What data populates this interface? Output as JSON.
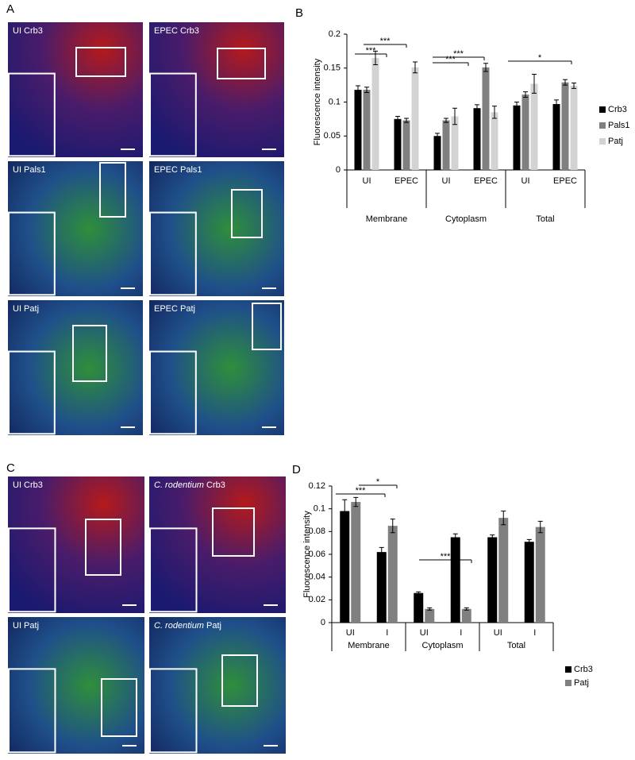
{
  "figure_a": {
    "label": "A",
    "images": [
      "UI Crb3",
      "EPEC Crb3",
      "UI Pals1",
      "EPEC Pals1",
      "UI Patj",
      "EPEC Patj"
    ]
  },
  "figure_c": {
    "label": "C",
    "images": [
      {
        "label": "UI Crb3"
      },
      {
        "species": "C. rodentium",
        "label": "Crb3"
      },
      {
        "label": "UI Patj"
      },
      {
        "species": "C. rodentium",
        "label": "Patj"
      }
    ]
  },
  "chart_data": [
    {
      "type": "bar",
      "panel": "B",
      "y_label": "Fluorescence intensity",
      "categories": [
        "UI",
        "EPEC",
        "UI",
        "EPEC",
        "UI",
        "EPEC"
      ],
      "groups": [
        "Membrane",
        "Cytoplasm",
        "Total"
      ],
      "series": [
        {
          "name": "Crb3",
          "color": "#000000",
          "values": [
            0.118,
            0.075,
            0.05,
            0.091,
            0.095,
            0.097
          ],
          "errors": [
            0.006,
            0.004,
            0.004,
            0.005,
            0.005,
            0.006
          ]
        },
        {
          "name": "Pals1",
          "color": "#808080",
          "values": [
            0.118,
            0.073,
            0.073,
            0.151,
            0.111,
            0.129
          ],
          "errors": [
            0.004,
            0.003,
            0.003,
            0.006,
            0.004,
            0.004
          ]
        },
        {
          "name": "Patj",
          "color": "#d3d3d3",
          "values": [
            0.165,
            0.151,
            0.079,
            0.085,
            0.127,
            0.124
          ],
          "errors": [
            0.01,
            0.008,
            0.012,
            0.009,
            0.014,
            0.004
          ]
        }
      ],
      "ylim": [
        0,
        0.2
      ],
      "yticks": [
        0,
        0.05,
        0.1,
        0.15,
        0.2
      ],
      "annotations": [
        "***",
        "***",
        "***",
        "***",
        "*"
      ]
    },
    {
      "type": "bar",
      "panel": "D",
      "y_label": "Fluorescence intensity",
      "categories": [
        "UI",
        "I",
        "UI",
        "I",
        "UI",
        "I"
      ],
      "groups": [
        "Membrane",
        "Cytoplasm",
        "Total"
      ],
      "series": [
        {
          "name": "Crb3",
          "color": "#000000",
          "values": [
            0.098,
            0.062,
            0.026,
            0.075,
            0.075,
            0.071
          ],
          "errors": [
            0.01,
            0.004,
            0.001,
            0.003,
            0.002,
            0.002
          ]
        },
        {
          "name": "Patj",
          "color": "#808080",
          "values": [
            0.106,
            0.085,
            0.012,
            0.012,
            0.092,
            0.084
          ],
          "errors": [
            0.004,
            0.006,
            0.001,
            0.001,
            0.006,
            0.005
          ]
        }
      ],
      "ylim": [
        0,
        0.12
      ],
      "yticks": [
        0,
        0.02,
        0.04,
        0.06,
        0.08,
        0.1,
        0.12
      ],
      "annotations": [
        "***",
        "*",
        "***"
      ]
    }
  ]
}
